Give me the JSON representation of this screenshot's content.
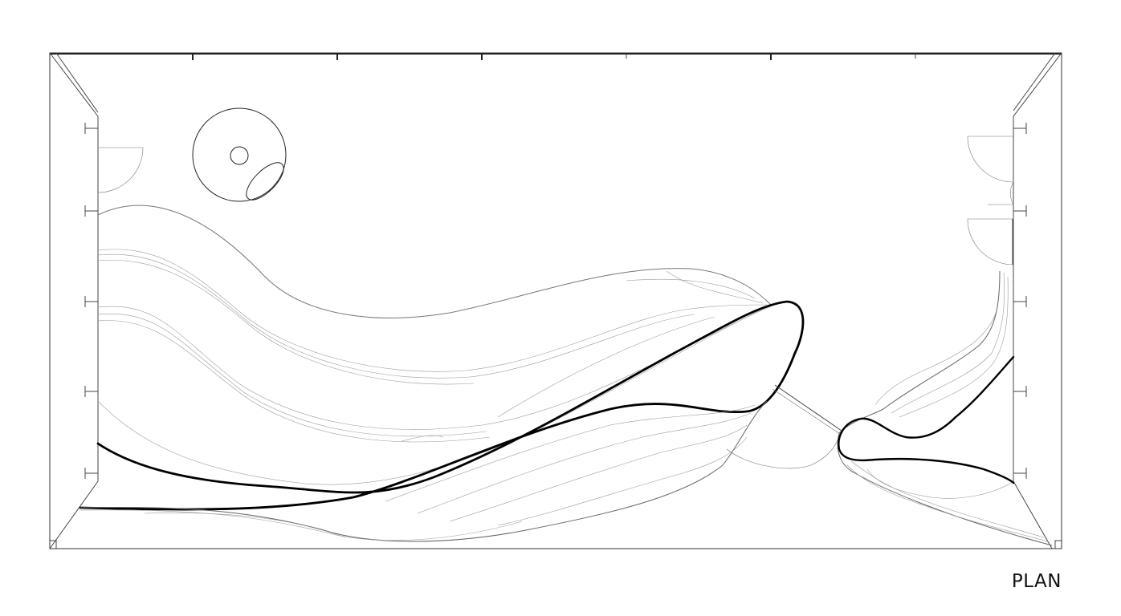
{
  "drawing": {
    "label": "PLAN"
  }
}
